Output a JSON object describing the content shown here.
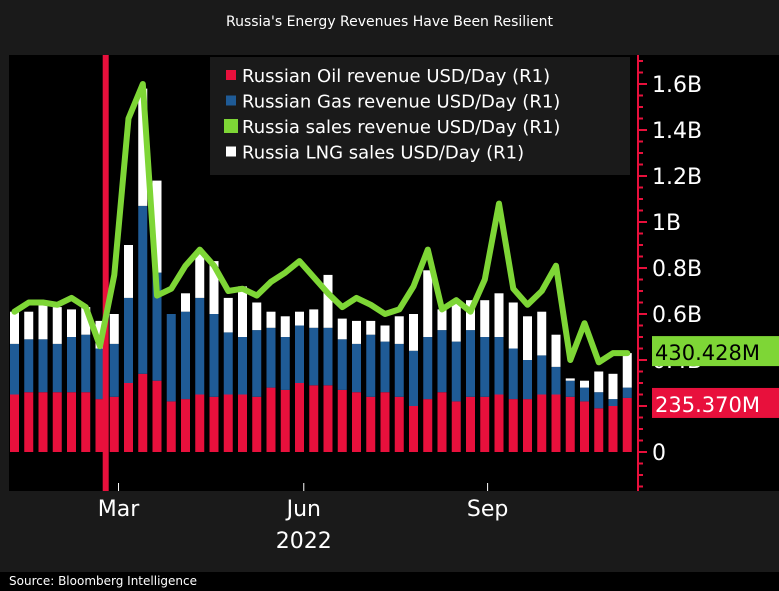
{
  "title": "Russia's Energy Revenues Have Been Resilient",
  "source": "Source: Bloomberg Intelligence",
  "colors": {
    "oil": "#e8103c",
    "gas": "#1f5b96",
    "sales": "#7ed636",
    "lng": "#ffffff",
    "marker": "#e8103c",
    "axis": "#e8103c",
    "background": "#000000"
  },
  "last_value_tags": {
    "sales": "430.428M",
    "oil": "235.370M"
  },
  "chart_data": {
    "type": "bar",
    "stacked": true,
    "title": "Russia's Energy Revenues Have Been Resilient",
    "xlabel": "2022",
    "ylabel": "",
    "ylim": [
      0,
      1.7
    ],
    "y_unit": "billion USD/day",
    "y_ticks": [
      "0",
      "0.2B",
      "0.4B",
      "0.6B",
      "0.8B",
      "1B",
      "1.2B",
      "1.4B",
      "1.6B"
    ],
    "y_tick_values": [
      0,
      0.2,
      0.4,
      0.6,
      0.8,
      1.0,
      1.2,
      1.4,
      1.6
    ],
    "x_ticks": [
      {
        "label": "Mar",
        "index": 7.3
      },
      {
        "label": "Jun",
        "index": 20.3
      },
      {
        "label": "Sep",
        "index": 33.2
      }
    ],
    "marker_line_index": 6.4,
    "legend_position": "top-right",
    "series": [
      {
        "name": "Russian Oil revenue USD/Day (R1)",
        "key": "oil",
        "values": [
          0.25,
          0.26,
          0.26,
          0.26,
          0.26,
          0.26,
          0.23,
          0.24,
          0.3,
          0.34,
          0.31,
          0.22,
          0.23,
          0.25,
          0.24,
          0.25,
          0.25,
          0.24,
          0.28,
          0.27,
          0.3,
          0.29,
          0.29,
          0.27,
          0.26,
          0.24,
          0.26,
          0.24,
          0.2,
          0.23,
          0.26,
          0.22,
          0.24,
          0.24,
          0.25,
          0.23,
          0.23,
          0.25,
          0.25,
          0.24,
          0.22,
          0.19,
          0.2,
          0.235
        ]
      },
      {
        "name": "Russian Gas revenue USD/Day (R1)",
        "key": "gas",
        "values": [
          0.22,
          0.23,
          0.23,
          0.21,
          0.24,
          0.25,
          0.22,
          0.23,
          0.37,
          0.73,
          0.47,
          0.38,
          0.38,
          0.42,
          0.36,
          0.27,
          0.25,
          0.29,
          0.26,
          0.23,
          0.25,
          0.25,
          0.25,
          0.22,
          0.21,
          0.27,
          0.22,
          0.23,
          0.24,
          0.27,
          0.27,
          0.26,
          0.29,
          0.26,
          0.25,
          0.22,
          0.17,
          0.17,
          0.12,
          0.07,
          0.06,
          0.07,
          0.03,
          0.045
        ]
      },
      {
        "name": "Russia LNG sales USD/Day (R1)",
        "key": "lng",
        "values": [
          0.14,
          0.12,
          0.16,
          0.16,
          0.12,
          0.12,
          0.12,
          0.13,
          0.23,
          0.51,
          0.4,
          0.0,
          0.08,
          0.2,
          0.23,
          0.15,
          0.22,
          0.12,
          0.07,
          0.09,
          0.06,
          0.08,
          0.23,
          0.09,
          0.1,
          0.06,
          0.07,
          0.12,
          0.16,
          0.29,
          0.09,
          0.18,
          0.13,
          0.16,
          0.19,
          0.2,
          0.19,
          0.19,
          0.14,
          0.01,
          0.03,
          0.09,
          0.11,
          0.15
        ]
      },
      {
        "name": "Russia sales revenue USD/Day (R1)",
        "key": "sales",
        "type": "line",
        "values": [
          0.61,
          0.65,
          0.65,
          0.64,
          0.67,
          0.63,
          0.46,
          0.77,
          1.45,
          1.6,
          0.68,
          0.71,
          0.81,
          0.88,
          0.81,
          0.7,
          0.71,
          0.68,
          0.74,
          0.78,
          0.83,
          0.76,
          0.69,
          0.63,
          0.67,
          0.64,
          0.6,
          0.62,
          0.72,
          0.88,
          0.62,
          0.66,
          0.61,
          0.75,
          1.08,
          0.71,
          0.64,
          0.7,
          0.81,
          0.4,
          0.56,
          0.39,
          0.43,
          0.43
        ]
      }
    ]
  }
}
